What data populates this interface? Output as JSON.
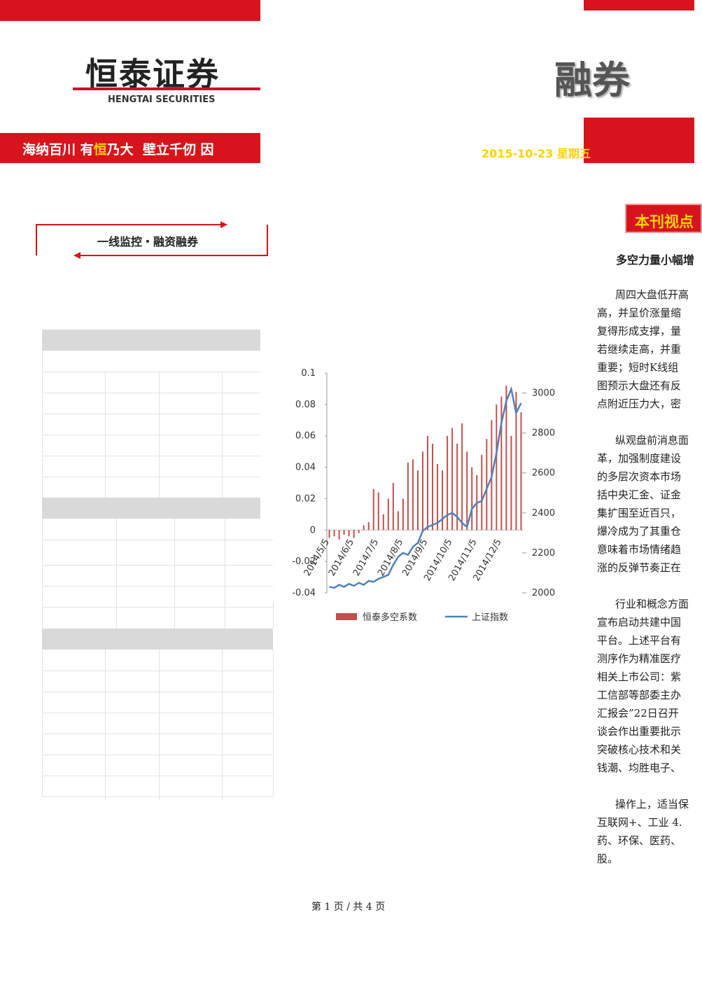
{
  "header": {
    "logo_cn": "恒泰证券",
    "logo_en": "HENGTAI SECURITIES",
    "slogan": [
      "海纳百川 有",
      "恒",
      "乃大  壁立千仞 因"
    ],
    "logo_right": "融券",
    "date": "2015-10-23 星期五"
  },
  "section_box": "一线监控・融资融券",
  "sidebar": {
    "title": "本刊视点",
    "headline": "多空力量小幅增",
    "paragraphs": [
      [
        "周四大盘低开高",
        "高，并呈价涨量缩",
        "复得形成支撑，量",
        "若继续走高，并重",
        "重要；短时K线组",
        "图预示大盘还有反",
        "点附近压力大，密"
      ],
      [
        "纵观盘前消息面",
        "革，加强制度建设",
        "的多层次资本市场",
        "括中央汇金、证金",
        "集扩围至近百只，",
        "爆冷成为了其重仓",
        "意味着市场情绪趋",
        "涨的反弹节奏正在"
      ],
      [
        "行业和概念方面",
        "宣布启动共建中国",
        "平台。上述平台有",
        "测序作为精准医疗",
        "相关上市公司：紫",
        "工信部等部委主办",
        "汇报会”22日召开",
        "谈会作出重要批示",
        "突破核心技术和关",
        "钱潮、均胜电子、"
      ],
      [
        "操作上，适当保",
        "互联网+、工业 4.",
        "药、环保、医药、",
        "股。"
      ]
    ]
  },
  "footer": "第 1 页 / 共 4 页",
  "chart_data": {
    "type": "combo",
    "categories": [
      "2014/5/5",
      null,
      null,
      null,
      null,
      "2014/6/5",
      null,
      null,
      null,
      null,
      "2014/7/5",
      null,
      null,
      null,
      null,
      "2014/8/5",
      null,
      null,
      null,
      null,
      "2014/9/5",
      null,
      null,
      null,
      null,
      "2014/10/5",
      null,
      null,
      null,
      null,
      "2014/11/5",
      null,
      null,
      null,
      null,
      "2014/12/5",
      null,
      null,
      null,
      null
    ],
    "series": [
      {
        "name": "恒泰多空系数",
        "type": "bar",
        "color": "#c0504d",
        "values": [
          -0.005,
          -0.004,
          -0.006,
          -0.003,
          -0.004,
          -0.005,
          -0.002,
          0.003,
          0.005,
          0.026,
          0.024,
          0.01,
          0.02,
          0.03,
          0.012,
          0.02,
          0.043,
          0.045,
          0.038,
          0.05,
          0.06,
          0.055,
          0.042,
          0.038,
          0.06,
          0.065,
          0.055,
          0.068,
          0.05,
          0.04,
          0.035,
          0.048,
          0.058,
          0.07,
          0.08,
          0.085,
          0.092,
          0.06,
          0.088,
          0.075
        ]
      },
      {
        "name": "上证指数",
        "type": "line",
        "axis": "y2",
        "color": "#4f81bd",
        "values": [
          2030,
          2025,
          2040,
          2030,
          2045,
          2035,
          2050,
          2040,
          2060,
          2055,
          2070,
          2080,
          2090,
          2140,
          2180,
          2200,
          2190,
          2230,
          2250,
          2310,
          2330,
          2340,
          2350,
          2370,
          2390,
          2400,
          2380,
          2350,
          2330,
          2420,
          2450,
          2460,
          2520,
          2580,
          2700,
          2850,
          2960,
          3020,
          2900,
          2950
        ]
      }
    ],
    "ylim": [
      -0.04,
      0.1
    ],
    "yticks": [
      -0.04,
      -0.02,
      0,
      0.02,
      0.04,
      0.06,
      0.08,
      0.1
    ],
    "y2lim": [
      2000,
      3100
    ],
    "y2ticks": [
      2000,
      2200,
      2400,
      2600,
      2800,
      3000
    ],
    "legend": "bottom"
  }
}
